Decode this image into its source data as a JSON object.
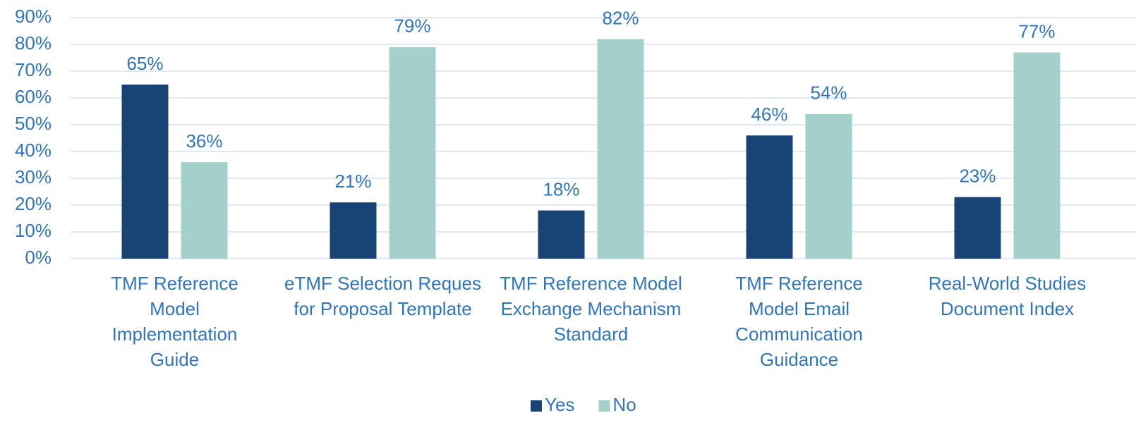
{
  "chart_data": {
    "type": "bar",
    "categories": [
      "TMF Reference Model Implementation Guide",
      "eTMF Selection Reques for Proposal Template",
      "TMF Reference Model Exchange Mechanism Standard",
      "TMF Reference Model Email Communication Guidance",
      "Real-World Studies Document Index"
    ],
    "series": [
      {
        "name": "Yes",
        "color": "#174475",
        "values": [
          65,
          21,
          18,
          46,
          23
        ],
        "value_labels": [
          "65%",
          "21%",
          "18%",
          "46%",
          "23%"
        ]
      },
      {
        "name": "No",
        "color": "#a3d0ca",
        "values": [
          36,
          79,
          82,
          54,
          77
        ],
        "value_labels": [
          "36%",
          "79%",
          "82%",
          "54%",
          "77%"
        ]
      }
    ],
    "ylim": [
      0,
      90
    ],
    "yticks": [
      {
        "value": 0,
        "label": "0%"
      },
      {
        "value": 10,
        "label": "10%"
      },
      {
        "value": 20,
        "label": "20%"
      },
      {
        "value": 30,
        "label": "30%"
      },
      {
        "value": 40,
        "label": "40%"
      },
      {
        "value": 50,
        "label": "50%"
      },
      {
        "value": 60,
        "label": "60%"
      },
      {
        "value": 70,
        "label": "70%"
      },
      {
        "value": 80,
        "label": "80%"
      },
      {
        "value": 90,
        "label": "90%"
      }
    ],
    "grid": true,
    "legend": "bottom"
  }
}
